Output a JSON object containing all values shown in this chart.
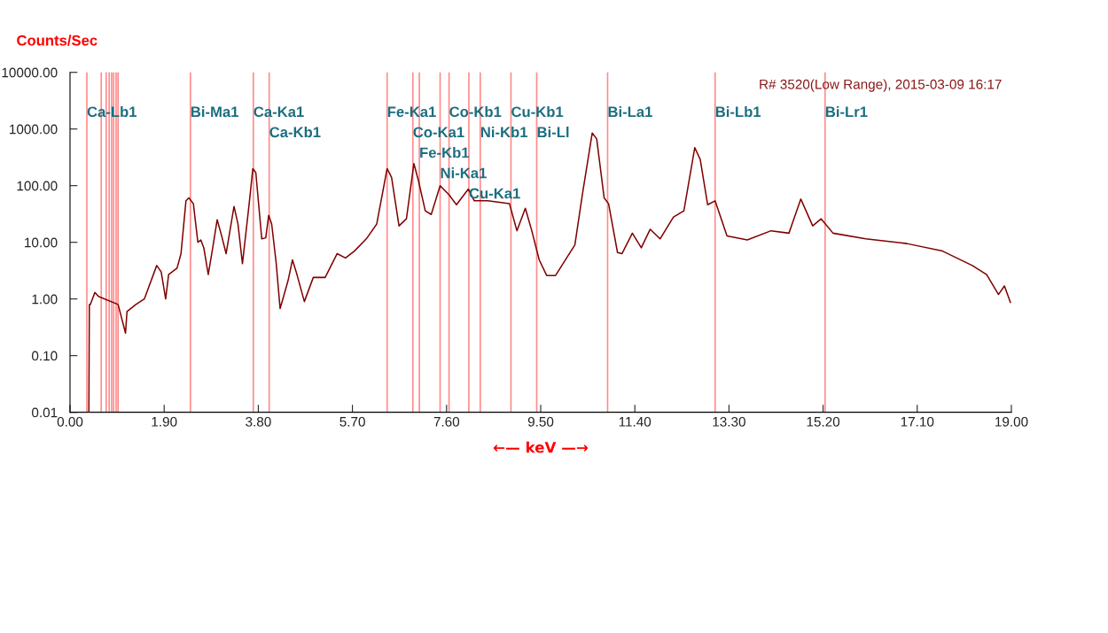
{
  "chart_data": {
    "type": "line",
    "ylabel": "Counts/Sec",
    "xlabel": "←— keV —→",
    "log": "y",
    "xlim": [
      0,
      19
    ],
    "ylim": [
      0.01,
      10000
    ],
    "xticks": [
      {
        "value": 0,
        "label": "0.00"
      },
      {
        "value": 1.9,
        "label": "1.90"
      },
      {
        "value": 3.8,
        "label": "3.80"
      },
      {
        "value": 5.7,
        "label": "5.70"
      },
      {
        "value": 7.6,
        "label": "7.60"
      },
      {
        "value": 9.5,
        "label": "9.50"
      },
      {
        "value": 11.4,
        "label": "11.40"
      },
      {
        "value": 13.3,
        "label": "13.30"
      },
      {
        "value": 15.2,
        "label": "15.20"
      },
      {
        "value": 17.1,
        "label": "17.10"
      },
      {
        "value": 19,
        "label": "19.00"
      }
    ],
    "yticks": [
      {
        "value": 0.01,
        "label": "0.01"
      },
      {
        "value": 0.1,
        "label": "0.10"
      },
      {
        "value": 1,
        "label": "1.00"
      },
      {
        "value": 10,
        "label": "10.00"
      },
      {
        "value": 100,
        "label": "100.00"
      },
      {
        "value": 1000,
        "label": "1000.00"
      },
      {
        "value": 10000,
        "label": "10000.00"
      }
    ],
    "grid": false,
    "legend": false,
    "marker": "none",
    "line_style": "solid",
    "series": [
      {
        "color": "#800000",
        "x": [
          0.38,
          0.39,
          0.41,
          0.5,
          0.58,
          0.97,
          1.12,
          1.15,
          1.33,
          1.5,
          1.75,
          1.84,
          1.93,
          1.99,
          2.16,
          2.24,
          2.34,
          2.4,
          2.49,
          2.58,
          2.64,
          2.7,
          2.79,
          2.88,
          2.97,
          3.06,
          3.15,
          3.31,
          3.39,
          3.48,
          3.61,
          3.69,
          3.75,
          3.87,
          3.95,
          4.01,
          4.07,
          4.16,
          4.24,
          4.31,
          4.4,
          4.49,
          4.58,
          4.73,
          4.91,
          5.15,
          5.39,
          5.56,
          5.74,
          5.98,
          6.19,
          6.4,
          6.49,
          6.64,
          6.79,
          6.94,
          7.03,
          7.17,
          7.29,
          7.47,
          7.65,
          7.8,
          8.04,
          8.16,
          8.43,
          8.87,
          9.02,
          9.19,
          9.32,
          9.47,
          9.62,
          9.8,
          10.04,
          10.19,
          10.34,
          10.54,
          10.63,
          10.78,
          10.87,
          11.05,
          11.14,
          11.35,
          11.53,
          11.71,
          11.91,
          12.18,
          12.39,
          12.61,
          12.72,
          12.87,
          13.02,
          13.26,
          13.67,
          14.15,
          14.51,
          14.75,
          14.99,
          15.16,
          15.4,
          16.06,
          16.89,
          17.61,
          18.21,
          18.5,
          18.74,
          18.86,
          18.98
        ],
        "values": [
          0.01,
          0.8,
          0.8,
          1.3,
          1.1,
          0.8,
          0.25,
          0.6,
          0.8,
          1.0,
          3.9,
          3.0,
          1.0,
          2.7,
          3.5,
          6.3,
          54,
          61,
          48,
          10,
          11,
          8,
          2.7,
          8,
          25,
          13,
          6.3,
          43,
          21,
          4.2,
          43,
          200,
          170,
          11.5,
          12,
          30,
          21,
          4.4,
          0.68,
          1.1,
          2.1,
          4.9,
          2.7,
          0.9,
          2.4,
          2.4,
          6.3,
          5.3,
          7,
          11.5,
          21,
          200,
          140,
          19.5,
          26,
          245,
          125,
          36,
          31,
          100,
          69,
          46,
          87,
          54,
          54,
          48,
          16,
          40,
          16,
          4.9,
          2.6,
          2.6,
          5.6,
          9,
          69,
          850,
          670,
          61,
          48,
          6.6,
          6.3,
          14.5,
          8,
          17,
          11.5,
          28,
          36,
          470,
          290,
          46,
          54,
          13,
          11,
          16,
          14.5,
          58,
          19.5,
          26,
          14.5,
          11.5,
          9.5,
          7,
          3.9,
          2.7,
          1.2,
          1.7,
          0.87
        ]
      }
    ],
    "annotations": [
      "R# 3520(Low Range), 2015-03-09 16:17"
    ],
    "ref_lines": [
      {
        "axis": "x",
        "value": 0.34,
        "label": "Ca-Lb1",
        "color": "#ff8c8c"
      },
      {
        "axis": "x",
        "value": 0.63,
        "label": null,
        "color": "#ff8c8c"
      },
      {
        "axis": "x",
        "value": 0.73,
        "label": null,
        "color": "#ff8c8c"
      },
      {
        "axis": "x",
        "value": 0.79,
        "label": null,
        "color": "#ff8c8c"
      },
      {
        "axis": "x",
        "value": 0.84,
        "label": null,
        "color": "#ff8c8c"
      },
      {
        "axis": "x",
        "value": 0.88,
        "label": null,
        "color": "#ff8c8c"
      },
      {
        "axis": "x",
        "value": 0.93,
        "label": null,
        "color": "#ff8c8c"
      },
      {
        "axis": "x",
        "value": 0.97,
        "label": null,
        "color": "#ff8c8c"
      },
      {
        "axis": "x",
        "value": 2.43,
        "label": "Bi-Ma1",
        "color": "#ff8c8c"
      },
      {
        "axis": "x",
        "value": 3.7,
        "label": "Ca-Ka1",
        "color": "#ff8c8c"
      },
      {
        "axis": "x",
        "value": 4.02,
        "label": "Ca-Kb1",
        "color": "#ff8c8c"
      },
      {
        "axis": "x",
        "value": 6.4,
        "label": "Fe-Ka1",
        "color": "#ff8c8c"
      },
      {
        "axis": "x",
        "value": 6.92,
        "label": "Co-Ka1",
        "color": "#ff8c8c"
      },
      {
        "axis": "x",
        "value": 7.05,
        "label": "Fe-Kb1",
        "color": "#ff8c8c"
      },
      {
        "axis": "x",
        "value": 7.47,
        "label": "Ni-Ka1",
        "color": "#ff8c8c"
      },
      {
        "axis": "x",
        "value": 7.65,
        "label": "Co-Kb1",
        "color": "#ff8c8c"
      },
      {
        "axis": "x",
        "value": 8.05,
        "label": "Cu-Ka1",
        "color": "#ff8c8c"
      },
      {
        "axis": "x",
        "value": 8.28,
        "label": "Ni-Kb1",
        "color": "#ff8c8c"
      },
      {
        "axis": "x",
        "value": 8.9,
        "label": "Cu-Kb1",
        "color": "#ff8c8c"
      },
      {
        "axis": "x",
        "value": 9.42,
        "label": "Bi-Ll",
        "color": "#ff8c8c"
      },
      {
        "axis": "x",
        "value": 10.85,
        "label": "Bi-La1",
        "color": "#ff8c8c"
      },
      {
        "axis": "x",
        "value": 13.02,
        "label": "Bi-Lb1",
        "color": "#ff8c8c"
      },
      {
        "axis": "x",
        "value": 15.24,
        "label": "Bi-Lr1",
        "color": "#ff8c8c"
      }
    ]
  }
}
